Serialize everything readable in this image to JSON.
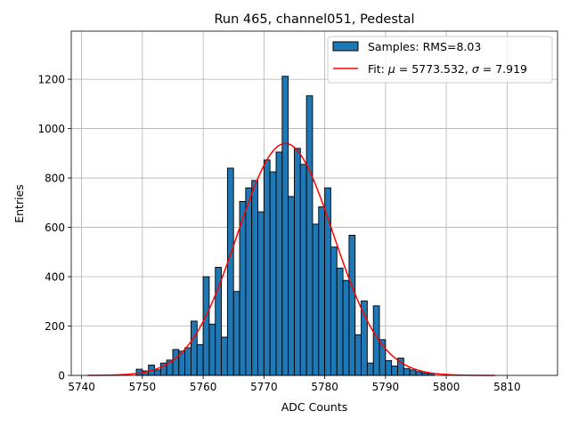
{
  "chart_data": {
    "type": "bar",
    "title": "Run 465, channel051, Pedestal",
    "xlabel": "ADC Counts",
    "ylabel": "Entries",
    "xlim": [
      5738.3,
      5818.3
    ],
    "ylim": [
      0,
      1395
    ],
    "xticks": [
      5740,
      5750,
      5760,
      5770,
      5780,
      5790,
      5800,
      5810
    ],
    "yticks": [
      0,
      200,
      400,
      600,
      800,
      1000,
      1200
    ],
    "grid": true,
    "legend_position": "top-right",
    "bin_width": 1,
    "histogram": {
      "name": "Samples: RMS=8.03",
      "color": "#1f77b4",
      "edgecolor": "#000000",
      "bin_start": 5749,
      "counts": [
        25,
        18,
        42,
        22,
        50,
        62,
        105,
        98,
        112,
        220,
        125,
        400,
        208,
        438,
        155,
        840,
        340,
        705,
        760,
        790,
        663,
        873,
        825,
        905,
        1212,
        725,
        920,
        855,
        1133,
        613,
        683,
        760,
        520,
        435,
        385,
        568,
        165,
        302,
        50,
        282,
        145,
        60,
        38,
        70,
        28,
        22,
        15,
        10,
        8
      ]
    },
    "fit": {
      "name_prefix": "Fit: ",
      "mu_symbol": "μ",
      "sigma_symbol": "σ",
      "mu_value": "5773.532",
      "sigma_value": "7.919",
      "color": "#ff0000",
      "mu": 5773.532,
      "sigma": 7.919,
      "amplitude": 940,
      "x_range": [
        5741,
        5808
      ]
    }
  }
}
